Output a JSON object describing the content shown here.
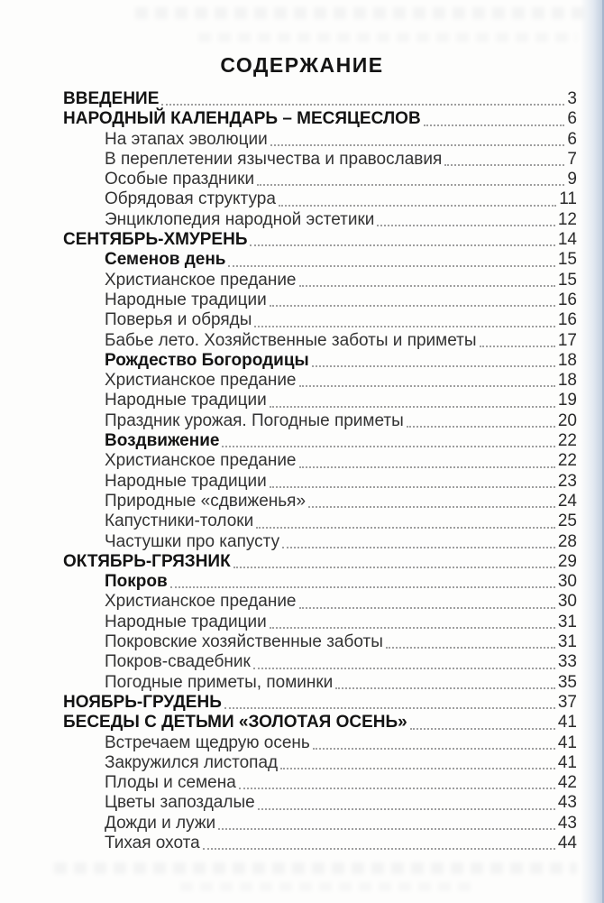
{
  "document": {
    "title": "СОДЕРЖАНИЕ",
    "toc": {
      "entries": [
        {
          "label": "ВВЕДЕНИЕ",
          "page": "3",
          "style": "chapter"
        },
        {
          "label": "НАРОДНЫЙ КАЛЕНДАРЬ – МЕСЯЦЕСЛОВ",
          "page": "6",
          "style": "chapter"
        },
        {
          "label": "На этапах эволюции",
          "page": "6",
          "style": "item"
        },
        {
          "label": "В переплетении язычества и православия",
          "page": "7",
          "style": "item"
        },
        {
          "label": "Особые праздники",
          "page": "9",
          "style": "item"
        },
        {
          "label": "Обрядовая структура",
          "page": "11",
          "style": "item"
        },
        {
          "label": "Энциклопедия народной эстетики",
          "page": "12",
          "style": "item"
        },
        {
          "label": "СЕНТЯБРЬ-ХМУРЕНЬ",
          "page": "14",
          "style": "chapter"
        },
        {
          "label": "Семенов день",
          "page": "15",
          "style": "section"
        },
        {
          "label": "Христианское предание",
          "page": "15",
          "style": "item"
        },
        {
          "label": "Народные традиции",
          "page": "16",
          "style": "item"
        },
        {
          "label": "Поверья и обряды",
          "page": "16",
          "style": "item"
        },
        {
          "label": "Бабье лето. Хозяйственные заботы и приметы",
          "page": "17",
          "style": "item"
        },
        {
          "label": "Рождество Богородицы",
          "page": "18",
          "style": "section"
        },
        {
          "label": "Христианское предание",
          "page": "18",
          "style": "item"
        },
        {
          "label": "Народные традиции",
          "page": "19",
          "style": "item"
        },
        {
          "label": "Праздник урожая. Погодные приметы",
          "page": "20",
          "style": "item"
        },
        {
          "label": "Воздвижение",
          "page": "22",
          "style": "section"
        },
        {
          "label": "Христианское предание",
          "page": "22",
          "style": "item"
        },
        {
          "label": "Народные традиции",
          "page": "23",
          "style": "item"
        },
        {
          "label": "Природные «сдвиженья»",
          "page": "24",
          "style": "item"
        },
        {
          "label": "Капустники-толоки",
          "page": "25",
          "style": "item"
        },
        {
          "label": "Частушки про капусту",
          "page": "28",
          "style": "item"
        },
        {
          "label": "ОКТЯБРЬ-ГРЯЗНИК",
          "page": "29",
          "style": "chapter"
        },
        {
          "label": "Покров",
          "page": "30",
          "style": "section"
        },
        {
          "label": "Христианское предание",
          "page": "30",
          "style": "item"
        },
        {
          "label": "Народные традиции",
          "page": "31",
          "style": "item"
        },
        {
          "label": "Покровские хозяйственные заботы",
          "page": "31",
          "style": "item"
        },
        {
          "label": "Покров-свадебник",
          "page": "33",
          "style": "item"
        },
        {
          "label": "Погодные приметы, поминки",
          "page": "35",
          "style": "item"
        },
        {
          "label": "НОЯБРЬ-ГРУДЕНЬ",
          "page": "37",
          "style": "chapter"
        },
        {
          "label": "БЕСЕДЫ С ДЕТЬМИ «ЗОЛОТАЯ ОСЕНЬ»",
          "page": "41",
          "style": "chapter"
        },
        {
          "label": "Встречаем щедрую осень",
          "page": "41",
          "style": "item"
        },
        {
          "label": "Закружился листопад",
          "page": "41",
          "style": "item"
        },
        {
          "label": "Плоды и семена",
          "page": "42",
          "style": "item"
        },
        {
          "label": "Цветы запоздалые",
          "page": "43",
          "style": "item"
        },
        {
          "label": "Дожди и лужи",
          "page": "43",
          "style": "item"
        },
        {
          "label": "Тихая охота",
          "page": "44",
          "style": "item"
        }
      ]
    }
  },
  "colors": {
    "text_bold": "#141414",
    "text_regular": "#333333",
    "page_number": "#2b2b2b",
    "leader_dots": "#9e9e9e",
    "page_background": "#fdfdfc",
    "edge_tint": "#cdd9e8"
  }
}
